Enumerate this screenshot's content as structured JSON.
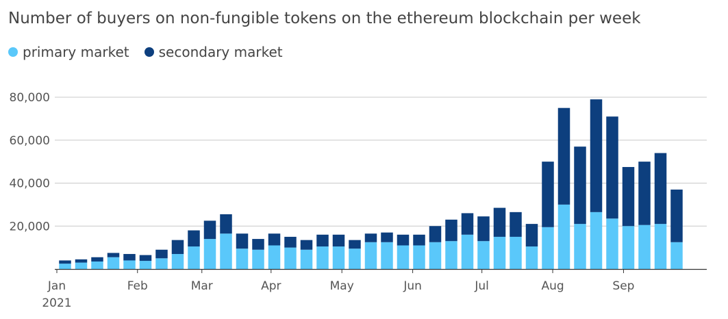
{
  "title": "Number of buyers on non-fungible tokens on the ethereum blockchain per week",
  "legend": [
    {
      "label": "primary market",
      "color": "#5AC8FA"
    },
    {
      "label": "secondary market",
      "color": "#0D3F7E"
    }
  ],
  "chart_data": {
    "type": "bar",
    "stacked": true,
    "title": "Number of buyers on non-fungible tokens on the ethereum blockchain per week",
    "xlabel": "",
    "ylabel": "",
    "ylim": [
      0,
      80000
    ],
    "yticks": [
      "80,000",
      "60,000",
      "40,000",
      "20,000"
    ],
    "ytick_values": [
      80000,
      60000,
      40000,
      20000
    ],
    "grid": true,
    "legend_position": "top-left",
    "x_axis_labels": [
      {
        "label": "Jan",
        "week_index": 0
      },
      {
        "label": "Feb",
        "week_index": 4.5
      },
      {
        "label": "Mar",
        "week_index": 8.5
      },
      {
        "label": "Apr",
        "week_index": 12.8
      },
      {
        "label": "May",
        "week_index": 17.2
      },
      {
        "label": "Jun",
        "week_index": 21.6
      },
      {
        "label": "Jul",
        "week_index": 25.9
      },
      {
        "label": "Aug",
        "week_index": 30.3
      },
      {
        "label": "Sep",
        "week_index": 34.7
      }
    ],
    "year_label": "2021",
    "series": [
      {
        "name": "primary market",
        "color": "#5AC8FA",
        "values": [
          2500,
          3000,
          3500,
          5500,
          4000,
          3800,
          5000,
          7000,
          10500,
          14000,
          16500,
          9500,
          9000,
          11000,
          10000,
          9000,
          10500,
          10500,
          9500,
          12500,
          12500,
          11000,
          11000,
          12500,
          13000,
          16000,
          13000,
          15000,
          15000,
          10500,
          19500,
          30000,
          21000,
          26500,
          23500,
          20000,
          20500,
          21000,
          12500
        ]
      },
      {
        "name": "secondary market",
        "color": "#0D3F7E",
        "values": [
          1500,
          1500,
          2000,
          2000,
          3000,
          2700,
          4000,
          6500,
          7500,
          8500,
          9000,
          7000,
          5000,
          5500,
          5000,
          4500,
          5500,
          5500,
          4000,
          4000,
          4500,
          5000,
          5000,
          7500,
          10000,
          10000,
          11500,
          13500,
          11500,
          10500,
          30500,
          45000,
          36000,
          52500,
          47500,
          27500,
          29500,
          33000,
          24500
        ]
      }
    ]
  }
}
